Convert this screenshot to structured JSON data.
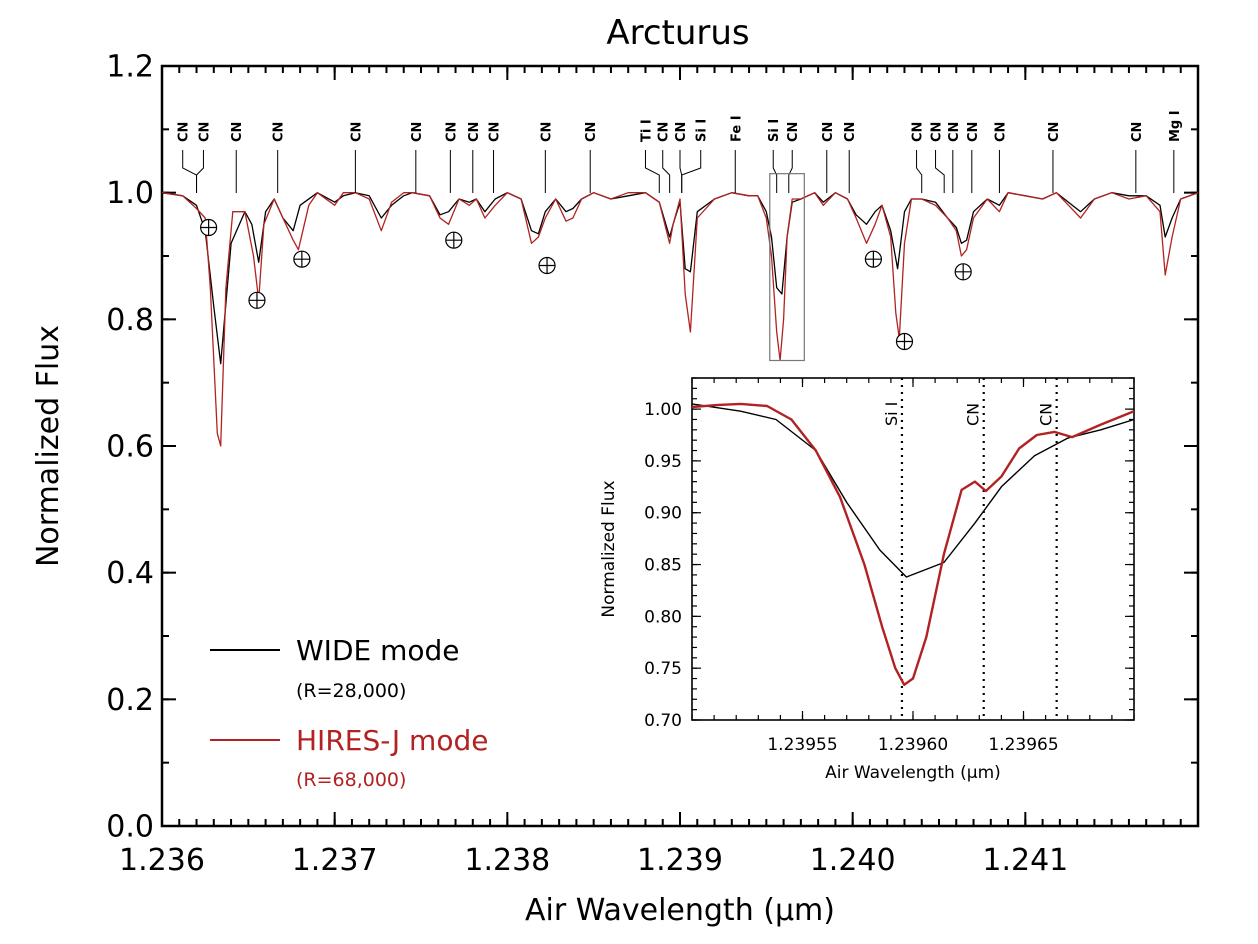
{
  "chart_data": [
    {
      "type": "line",
      "title": "Arcturus",
      "xlabel": "Air Wavelength (μm)",
      "ylabel": "Normalized Flux",
      "xlim": [
        1.236,
        1.242
      ],
      "ylim": [
        0.0,
        1.2
      ],
      "x_ticks": [
        1.236,
        1.237,
        1.238,
        1.239,
        1.24,
        1.241
      ],
      "x_tick_labels": [
        "1.236",
        "1.237",
        "1.238",
        "1.239",
        "1.240",
        "1.241"
      ],
      "y_ticks": [
        0.0,
        0.2,
        0.4,
        0.6,
        0.8,
        1.0,
        1.2
      ],
      "y_tick_labels": [
        "0.0",
        "0.2",
        "0.4",
        "0.6",
        "0.8",
        "1.0",
        "1.2"
      ],
      "legend_position": "bottom-left",
      "series": [
        {
          "name": "WIDE mode",
          "sub_label": "(R=28,000)",
          "color": "#000000",
          "x": [
            1.236,
            1.23612,
            1.2362,
            1.23625,
            1.2363,
            1.23634,
            1.2364,
            1.23648,
            1.23652,
            1.23656,
            1.2366,
            1.23665,
            1.2367,
            1.23676,
            1.2368,
            1.2369,
            1.237,
            1.23705,
            1.23712,
            1.2372,
            1.23727,
            1.23733,
            1.2374,
            1.23745,
            1.23755,
            1.23761,
            1.23766,
            1.23772,
            1.23778,
            1.23782,
            1.23787,
            1.23793,
            1.238,
            1.23808,
            1.23814,
            1.23818,
            1.23822,
            1.23828,
            1.23834,
            1.23838,
            1.23843,
            1.2385,
            1.2386,
            1.2387,
            1.2388,
            1.23888,
            1.23894,
            1.23896,
            1.239,
            1.23903,
            1.23906,
            1.2391,
            1.2392,
            1.2393,
            1.2394,
            1.23945,
            1.2395,
            1.23953,
            1.23956,
            1.23959,
            1.23962,
            1.23965,
            1.2397,
            1.23978,
            1.23983,
            1.2399,
            1.23997,
            1.24002,
            1.24008,
            1.24013,
            1.24017,
            1.24022,
            1.24026,
            1.2403,
            1.24034,
            1.2404,
            1.24048,
            1.24055,
            1.2406,
            1.24063,
            1.24066,
            1.2407,
            1.24078,
            1.24085,
            1.2409,
            1.241,
            1.2411,
            1.24118,
            1.24125,
            1.24132,
            1.2414,
            1.2415,
            1.2416,
            1.2417,
            1.24178,
            1.24181,
            1.24185,
            1.2419,
            1.242
          ],
          "y": [
            1.0,
            0.995,
            0.98,
            0.94,
            0.82,
            0.73,
            0.92,
            0.97,
            0.95,
            0.89,
            0.97,
            0.99,
            0.96,
            0.94,
            0.98,
            1.0,
            0.985,
            0.995,
            1.0,
            0.995,
            0.96,
            0.98,
            0.995,
            1.0,
            0.995,
            0.965,
            0.97,
            0.99,
            0.985,
            0.99,
            0.97,
            0.99,
            1.0,
            0.99,
            0.94,
            0.935,
            0.97,
            0.99,
            0.97,
            0.975,
            0.99,
            1.0,
            0.99,
            0.995,
            1.0,
            0.985,
            0.93,
            0.95,
            0.985,
            0.88,
            0.875,
            0.97,
            0.99,
            1.0,
            0.995,
            0.995,
            0.97,
            0.93,
            0.85,
            0.84,
            0.93,
            0.985,
            0.99,
            1.0,
            0.985,
            1.0,
            0.99,
            0.965,
            0.95,
            0.97,
            0.98,
            0.94,
            0.88,
            0.97,
            0.99,
            0.99,
            0.985,
            0.96,
            0.945,
            0.92,
            0.925,
            0.97,
            0.99,
            0.98,
            1.0,
            0.995,
            0.99,
            1.0,
            0.985,
            0.97,
            0.99,
            1.0,
            0.995,
            0.995,
            0.98,
            0.93,
            0.96,
            0.99,
            1.0
          ]
        },
        {
          "name": "HIRES-J mode",
          "sub_label": "(R=68,000)",
          "color": "#b22222",
          "x": [
            1.236,
            1.23612,
            1.2362,
            1.23625,
            1.23628,
            1.23632,
            1.23634,
            1.23637,
            1.23641,
            1.23648,
            1.23653,
            1.23656,
            1.23659,
            1.23665,
            1.2367,
            1.23676,
            1.23679,
            1.23685,
            1.2369,
            1.237,
            1.23705,
            1.23712,
            1.2372,
            1.23727,
            1.23733,
            1.2374,
            1.23745,
            1.23755,
            1.23761,
            1.23766,
            1.23772,
            1.23778,
            1.23782,
            1.23787,
            1.23793,
            1.238,
            1.23808,
            1.23814,
            1.23818,
            1.23822,
            1.23828,
            1.23834,
            1.23838,
            1.23843,
            1.2385,
            1.2386,
            1.2387,
            1.2388,
            1.23888,
            1.23894,
            1.23896,
            1.239,
            1.23903,
            1.23906,
            1.2391,
            1.2392,
            1.2393,
            1.2394,
            1.23945,
            1.2395,
            1.23953,
            1.23956,
            1.23958,
            1.2396,
            1.23962,
            1.23965,
            1.2397,
            1.23978,
            1.23983,
            1.2399,
            1.23997,
            1.24002,
            1.24008,
            1.24013,
            1.24017,
            1.24022,
            1.24025,
            1.24027,
            1.2403,
            1.24034,
            1.2404,
            1.24048,
            1.24055,
            1.2406,
            1.24063,
            1.24066,
            1.2407,
            1.24078,
            1.24085,
            1.2409,
            1.241,
            1.2411,
            1.24118,
            1.24125,
            1.24132,
            1.2414,
            1.2415,
            1.2416,
            1.2417,
            1.24178,
            1.24181,
            1.24185,
            1.2419,
            1.242
          ],
          "y": [
            1.0,
            0.995,
            0.975,
            0.96,
            0.85,
            0.62,
            0.6,
            0.85,
            0.97,
            0.97,
            0.9,
            0.83,
            0.95,
            0.99,
            0.96,
            0.925,
            0.91,
            0.98,
            1.0,
            0.98,
            1.0,
            1.0,
            0.99,
            0.94,
            0.985,
            1.0,
            1.0,
            0.995,
            0.96,
            0.95,
            0.99,
            0.98,
            0.99,
            0.96,
            0.98,
            1.0,
            0.99,
            0.92,
            0.93,
            0.96,
            0.99,
            0.955,
            0.96,
            0.99,
            1.0,
            0.99,
            1.0,
            1.0,
            0.985,
            0.92,
            0.95,
            0.99,
            0.84,
            0.78,
            0.96,
            0.99,
            1.0,
            0.995,
            0.995,
            0.96,
            0.9,
            0.78,
            0.735,
            0.8,
            0.93,
            0.99,
            0.99,
            1.0,
            0.98,
            1.0,
            0.99,
            0.96,
            0.92,
            0.95,
            0.98,
            0.93,
            0.81,
            0.77,
            0.92,
            0.99,
            0.99,
            0.98,
            0.96,
            0.94,
            0.9,
            0.91,
            0.96,
            0.99,
            0.97,
            1.0,
            0.995,
            0.99,
            1.0,
            0.98,
            0.96,
            0.99,
            1.0,
            0.99,
            0.995,
            0.97,
            0.87,
            0.93,
            0.99,
            1.0
          ]
        }
      ],
      "line_ids": {
        "labels": [
          "CN",
          "CN",
          "CN",
          "CN",
          "CN",
          "CN",
          "CN",
          "CN",
          "CN",
          "CN",
          "CN",
          "Ti I",
          "CN",
          "CN",
          "Si I",
          "Fe I",
          "Si I",
          "CN",
          "CN",
          "CN",
          "CN",
          "CN",
          "CN",
          "CN",
          "CN",
          "CN",
          "CN",
          "Mg I"
        ],
        "x": [
          1.23612,
          1.23624,
          1.23643,
          1.23667,
          1.23712,
          1.23747,
          1.23767,
          1.2378,
          1.23792,
          1.23822,
          1.23848,
          1.2388,
          1.2389,
          1.239,
          1.23912,
          1.23932,
          1.23954,
          1.23965,
          1.23985,
          1.23998,
          1.24037,
          1.24048,
          1.24058,
          1.24069,
          1.24085,
          1.24116,
          1.24164,
          1.24186
        ],
        "x_line": [
          1.2362,
          1.2362,
          1.23643,
          1.23667,
          1.23712,
          1.23747,
          1.23767,
          1.2378,
          1.23792,
          1.23822,
          1.23848,
          1.23888,
          1.23894,
          1.23901,
          1.23901,
          1.23932,
          1.23956,
          1.23963,
          1.23985,
          1.23998,
          1.2404,
          1.24053,
          1.24058,
          1.24069,
          1.24085,
          1.24116,
          1.24164,
          1.24186
        ]
      },
      "telluric_markers": {
        "x": [
          1.23627,
          1.23655,
          1.23681,
          1.23769,
          1.23823,
          1.24012,
          1.2403,
          1.24064
        ],
        "y": [
          0.945,
          0.83,
          0.895,
          0.925,
          0.885,
          0.895,
          0.765,
          0.875
        ]
      },
      "zoom_box": {
        "x0": 1.23952,
        "x1": 1.23972,
        "y0": 0.735,
        "y1": 1.03
      }
    },
    {
      "type": "line",
      "title": "",
      "xlabel": "Air Wavelength (μm)",
      "ylabel": "Normalized Flux",
      "xlim": [
        1.2395,
        1.2397
      ],
      "ylim": [
        0.7,
        1.03
      ],
      "x_ticks": [
        1.23955,
        1.2396,
        1.23965
      ],
      "x_tick_labels": [
        "1.23955",
        "1.23960",
        "1.23965"
      ],
      "y_ticks": [
        0.7,
        0.75,
        0.8,
        0.85,
        0.9,
        0.95,
        1.0
      ],
      "y_tick_labels": [
        "0.70",
        "0.75",
        "0.80",
        "0.85",
        "0.90",
        "0.95",
        "1.00"
      ],
      "vlines": [
        {
          "label": "Si I",
          "x": 1.239595
        },
        {
          "label": "CN",
          "x": 1.239632
        },
        {
          "label": "CN",
          "x": 1.239665
        }
      ],
      "series": [
        {
          "name": "WIDE mode",
          "color": "#000000",
          "x": [
            1.2395,
            1.239522,
            1.239538,
            1.239556,
            1.23957,
            1.239585,
            1.239597,
            1.239614,
            1.239628,
            1.23964,
            1.239655,
            1.23967,
            1.239685,
            1.2397
          ],
          "y": [
            1.005,
            0.998,
            0.99,
            0.96,
            0.91,
            0.864,
            0.838,
            0.852,
            0.89,
            0.925,
            0.955,
            0.972,
            0.98,
            0.99
          ]
        },
        {
          "name": "HIRES-J mode",
          "color": "#b22222",
          "x": [
            1.2395,
            1.239512,
            1.239522,
            1.239534,
            1.239545,
            1.239556,
            1.239567,
            1.239578,
            1.239586,
            1.239592,
            1.239596,
            1.2396,
            1.239606,
            1.239614,
            1.239622,
            1.239628,
            1.239633,
            1.23964,
            1.239648,
            1.239656,
            1.239664,
            1.239672,
            1.239685,
            1.2397
          ],
          "y": [
            1.002,
            1.004,
            1.005,
            1.003,
            0.99,
            0.96,
            0.915,
            0.85,
            0.79,
            0.75,
            0.734,
            0.74,
            0.78,
            0.86,
            0.922,
            0.93,
            0.921,
            0.935,
            0.962,
            0.975,
            0.978,
            0.973,
            0.985,
            0.998
          ]
        }
      ]
    }
  ]
}
